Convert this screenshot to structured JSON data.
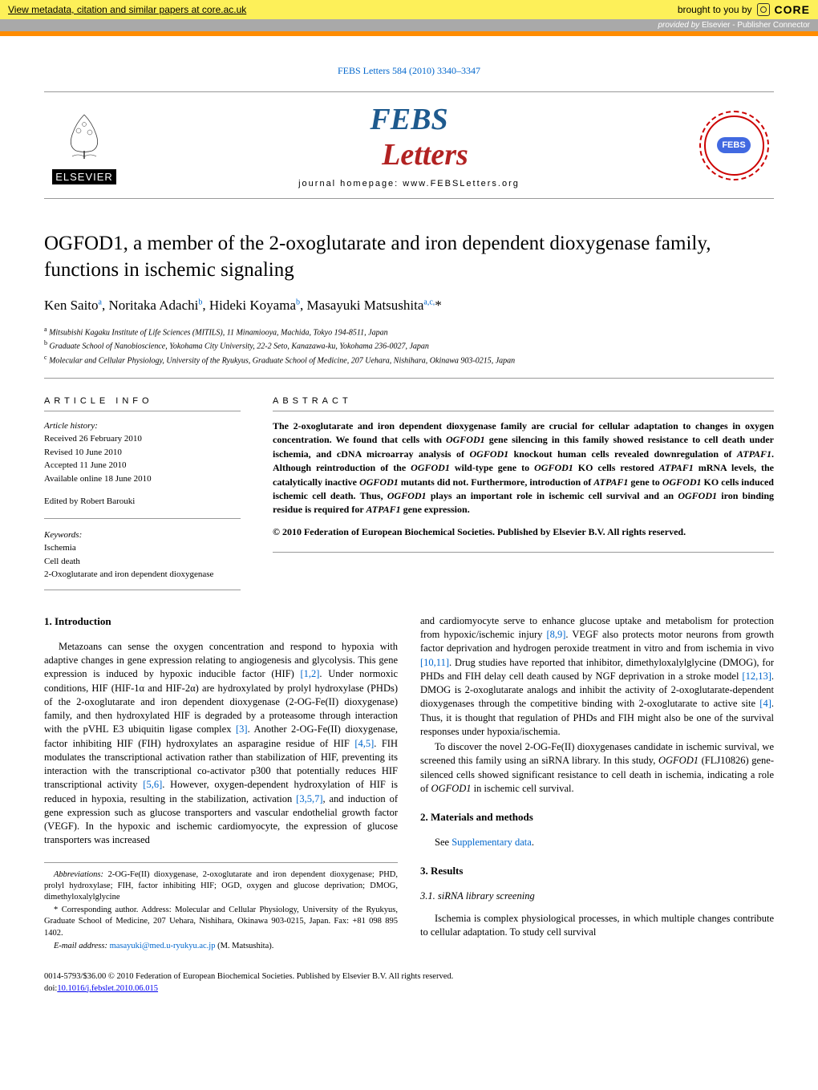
{
  "banner": {
    "link_text": "View metadata, citation and similar papers at core.ac.uk",
    "brought_by": "brought to you by",
    "core_label": "CORE",
    "provided_prefix": "provided by",
    "provided_by": "Elsevier - Publisher Connector"
  },
  "journal_ref": "FEBS Letters 584 (2010) 3340–3347",
  "header": {
    "elsevier": "ELSEVIER",
    "homepage": "journal homepage: www.FEBSLetters.org",
    "febs_badge": "FEBS"
  },
  "title": "OGFOD1, a member of the 2-oxoglutarate and iron dependent dioxygenase family, functions in ischemic signaling",
  "authors_html": "Ken Saito<sup>a</sup>, Noritaka Adachi<sup>b</sup>, Hideki Koyama<sup>b</sup>, Masayuki Matsushita<sup>a,c,</sup><span class='star'>*</span>",
  "affiliations": [
    "Mitsubishi Kagaku Institute of Life Sciences (MITILS), 11 Minamiooya, Machida, Tokyo 194-8511, Japan",
    "Graduate School of Nanobioscience, Yokohama City University, 22-2 Seto, Kanazawa-ku, Yokohama 236-0027, Japan",
    "Molecular and Cellular Physiology, University of the Ryukyus, Graduate School of Medicine, 207 Uehara, Nishihara, Okinawa 903-0215, Japan"
  ],
  "article_info_label": "ARTICLE INFO",
  "abstract_label": "ABSTRACT",
  "history": {
    "label": "Article history:",
    "received": "Received 26 February 2010",
    "revised": "Revised 10 June 2010",
    "accepted": "Accepted 11 June 2010",
    "online": "Available online 18 June 2010"
  },
  "editor": "Edited by Robert Barouki",
  "keywords_label": "Keywords:",
  "keywords": [
    "Ischemia",
    "Cell death",
    "2-Oxoglutarate and iron dependent dioxygenase"
  ],
  "abstract": "The 2-oxoglutarate and iron dependent dioxygenase family are crucial for cellular adaptation to changes in oxygen concentration. We found that cells with OGFOD1 gene silencing in this family showed resistance to cell death under ischemia, and cDNA microarray analysis of OGFOD1 knockout human cells revealed downregulation of ATPAF1. Although reintroduction of the OGFOD1 wild-type gene to OGFOD1 KO cells restored ATPAF1 mRNA levels, the catalytically inactive OGFOD1 mutants did not. Furthermore, introduction of ATPAF1 gene to OGFOD1 KO cells induced ischemic cell death. Thus, OGFOD1 plays an important role in ischemic cell survival and an OGFOD1 iron binding residue is required for ATPAF1 gene expression.",
  "copyright": "© 2010 Federation of European Biochemical Societies. Published by Elsevier B.V. All rights reserved.",
  "sections": {
    "intro_heading": "1. Introduction",
    "intro_p1": "Metazoans can sense the oxygen concentration and respond to hypoxia with adaptive changes in gene expression relating to angiogenesis and glycolysis. This gene expression is induced by hypoxic inducible factor (HIF) [1,2]. Under normoxic conditions, HIF (HIF-1α and HIF-2α) are hydroxylated by prolyl hydroxylase (PHDs) of the 2-oxoglutarate and iron dependent dioxygenase (2-OG-Fe(II) dioxygenase) family, and then hydroxylated HIF is degraded by a proteasome through interaction with the pVHL E3 ubiquitin ligase complex [3]. Another 2-OG-Fe(II) dioxygenase, factor inhibiting HIF (FIH) hydroxylates an asparagine residue of HIF [4,5]. FIH modulates the transcriptional activation rather than stabilization of HIF, preventing its interaction with the transcriptional co-activator p300 that potentially reduces HIF transcriptional activity [5,6]. However, oxygen-dependent hydroxylation of HIF is reduced in hypoxia, resulting in the stabilization, activation [3,5,7], and induction of gene expression such as glucose transporters and vascular endothelial growth factor (VEGF). In the hypoxic and ischemic cardiomyocyte, the expression of glucose transporters was increased",
    "intro_p2": "and cardiomyocyte serve to enhance glucose uptake and metabolism for protection from hypoxic/ischemic injury [8,9]. VEGF also protects motor neurons from growth factor deprivation and hydrogen peroxide treatment in vitro and from ischemia in vivo [10,11]. Drug studies have reported that inhibitor, dimethyloxalylglycine (DMOG), for PHDs and FIH delay cell death caused by NGF deprivation in a stroke model [12,13]. DMOG is 2-oxoglutarate analogs and inhibit the activity of 2-oxoglutarate-dependent dioxygenases through the competitive binding with 2-oxoglutarate to active site [4]. Thus, it is thought that regulation of PHDs and FIH might also be one of the survival responses under hypoxia/ischemia.",
    "intro_p3": "To discover the novel 2-OG-Fe(II) dioxygenases candidate in ischemic survival, we screened this family using an siRNA library. In this study, OGFOD1 (FLJ10826) gene-silenced cells showed significant resistance to cell death in ischemia, indicating a role of OGFOD1 in ischemic cell survival.",
    "methods_heading": "2. Materials and methods",
    "methods_p": "See Supplementary data.",
    "results_heading": "3. Results",
    "results_sub": "3.1. siRNA library screening",
    "results_p": "Ischemia is complex physiological processes, in which multiple changes contribute to cellular adaptation. To study cell survival"
  },
  "footnotes": {
    "abbrev_label": "Abbreviations:",
    "abbrev": "2-OG-Fe(II) dioxygenase, 2-oxoglutarate and iron dependent dioxygenase; PHD, prolyl hydroxylase; FIH, factor inhibiting HIF; OGD, oxygen and glucose deprivation; DMOG, dimethyloxalylglycine",
    "corresponding": "* Corresponding author. Address: Molecular and Cellular Physiology, University of the Ryukyus, Graduate School of Medicine, 207 Uehara, Nishihara, Okinawa 903-0215, Japan. Fax: +81 098 895 1402.",
    "email_label": "E-mail address:",
    "email": "masayuki@med.u-ryukyu.ac.jp",
    "email_name": "(M. Matsushita)."
  },
  "page_footer": {
    "line1": "0014-5793/$36.00 © 2010 Federation of European Biochemical Societies. Published by Elsevier B.V. All rights reserved.",
    "line2": "doi:10.1016/j.febslet.2010.06.015"
  },
  "colors": {
    "banner_bg": "#fdf059",
    "provided_bg": "#a9a9a9",
    "orange": "#ff8c00",
    "link": "#0066cc",
    "febs_red": "#b22222",
    "febs_blue": "#1e5a8e",
    "rule": "#999999"
  }
}
